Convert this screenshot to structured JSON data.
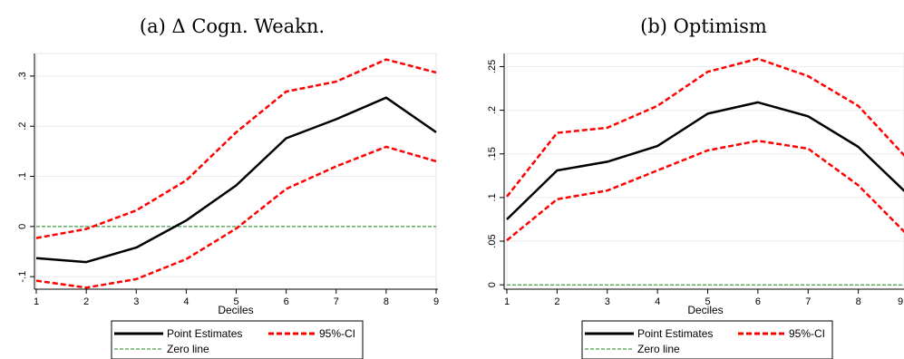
{
  "chart_data": [
    {
      "type": "line",
      "title": "(a) Δ Cogn. Weakn.",
      "xlabel": "Deciles",
      "ylabel": "",
      "x": [
        1,
        2,
        3,
        4,
        5,
        6,
        7,
        8,
        9
      ],
      "xticks": [
        "1",
        "2",
        "3",
        "4",
        "5",
        "6",
        "7",
        "8",
        "9"
      ],
      "yticks": [
        -0.1,
        0,
        0.1,
        0.2,
        0.3
      ],
      "ytick_labels": [
        "-.1",
        "0",
        ".1",
        ".2",
        ".3"
      ],
      "xlim": [
        1,
        9
      ],
      "ylim": [
        -0.125,
        0.345
      ],
      "grid": true,
      "legend_position": "bottom",
      "series": [
        {
          "name": "Point Estimates",
          "role": "point",
          "color": "#000000",
          "values": [
            -0.063,
            -0.071,
            -0.042,
            0.012,
            0.082,
            0.176,
            0.214,
            0.257,
            0.188
          ]
        },
        {
          "name": "95%-CI",
          "role": "ci_upper",
          "color": "#ff0000",
          "values": [
            -0.023,
            -0.005,
            0.032,
            0.092,
            0.188,
            0.269,
            0.289,
            0.333,
            0.307
          ]
        },
        {
          "name": "95%-CI",
          "role": "ci_lower",
          "color": "#ff0000",
          "values": [
            -0.108,
            -0.122,
            -0.105,
            -0.065,
            -0.004,
            0.075,
            0.12,
            0.159,
            0.13
          ]
        },
        {
          "name": "Zero line",
          "role": "zero",
          "color": "#1a8a1a",
          "values": [
            0,
            0,
            0,
            0,
            0,
            0,
            0,
            0,
            0
          ]
        }
      ]
    },
    {
      "type": "line",
      "title": "(b) Optimism",
      "xlabel": "Deciles",
      "ylabel": "",
      "x": [
        1,
        2,
        3,
        4,
        5,
        6,
        7,
        8,
        9
      ],
      "xticks": [
        "1",
        "2",
        "3",
        "4",
        "5",
        "6",
        "7",
        "8",
        "9"
      ],
      "yticks": [
        0,
        0.05,
        0.1,
        0.15,
        0.2,
        0.25
      ],
      "ytick_labels": [
        "0",
        ".05",
        ".1",
        ".15",
        ".2",
        ".25"
      ],
      "xlim": [
        1,
        9
      ],
      "ylim": [
        -0.005,
        0.265
      ],
      "grid": true,
      "legend_position": "bottom",
      "series": [
        {
          "name": "Point Estimates",
          "role": "point",
          "color": "#000000",
          "values": [
            0.075,
            0.131,
            0.141,
            0.159,
            0.196,
            0.209,
            0.193,
            0.158,
            0.103
          ]
        },
        {
          "name": "95%-CI",
          "role": "ci_upper",
          "color": "#ff0000",
          "values": [
            0.101,
            0.174,
            0.18,
            0.205,
            0.244,
            0.259,
            0.239,
            0.205,
            0.143
          ]
        },
        {
          "name": "95%-CI",
          "role": "ci_lower",
          "color": "#ff0000",
          "values": [
            0.051,
            0.098,
            0.108,
            0.131,
            0.154,
            0.165,
            0.156,
            0.114,
            0.056
          ]
        },
        {
          "name": "Zero line",
          "role": "zero",
          "color": "#1a8a1a",
          "values": [
            0,
            0,
            0,
            0,
            0,
            0,
            0,
            0,
            0
          ]
        }
      ]
    }
  ],
  "legend": {
    "point_label": "Point Estimates",
    "ci_label": "95%-CI",
    "zero_label": "Zero line"
  }
}
